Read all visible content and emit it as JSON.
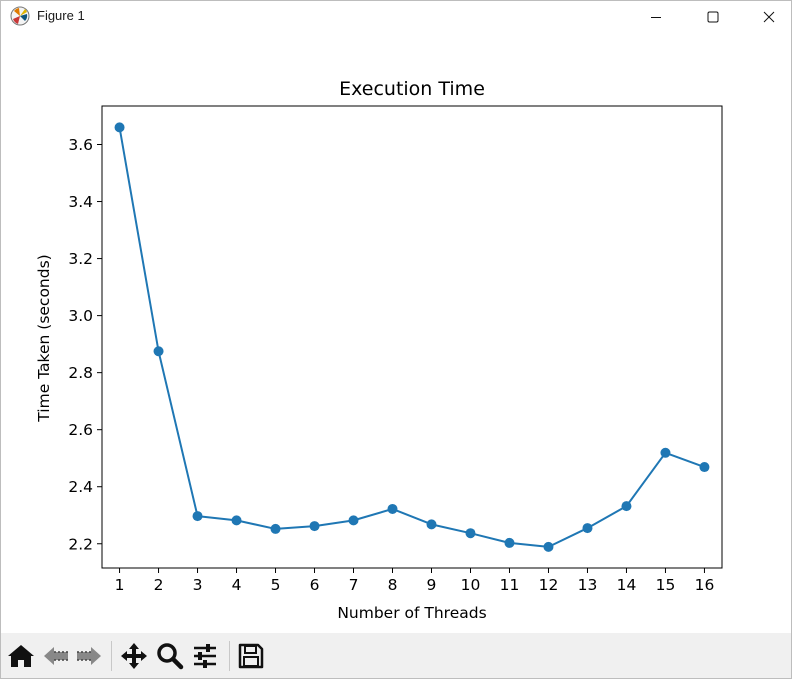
{
  "window": {
    "title": "Figure 1",
    "controls": [
      "minimize",
      "maximize",
      "close"
    ]
  },
  "toolbar": {
    "buttons": [
      {
        "name": "home",
        "icon": "home-icon"
      },
      {
        "name": "back",
        "icon": "back-arrow-icon"
      },
      {
        "name": "forward",
        "icon": "forward-arrow-icon"
      },
      {
        "name": "pan",
        "icon": "move-icon"
      },
      {
        "name": "zoom",
        "icon": "magnifier-icon"
      },
      {
        "name": "configure",
        "icon": "sliders-icon"
      },
      {
        "name": "save",
        "icon": "floppy-icon"
      }
    ]
  },
  "chart_data": {
    "type": "line",
    "title": "Execution Time",
    "xlabel": "Number of Threads",
    "ylabel": "Time Taken (seconds)",
    "x": [
      1,
      2,
      3,
      4,
      5,
      6,
      7,
      8,
      9,
      10,
      11,
      12,
      13,
      14,
      15,
      16
    ],
    "series": [
      {
        "values": [
          3.66,
          2.875,
          2.297,
          2.282,
          2.252,
          2.262,
          2.282,
          2.322,
          2.268,
          2.237,
          2.203,
          2.189,
          2.255,
          2.332,
          2.519,
          2.469
        ],
        "color": "#1f77b4",
        "marker": "circle"
      }
    ],
    "xlim": [
      0.55,
      16.45
    ],
    "ylim": [
      2.115,
      3.735
    ],
    "yticks": [
      2.2,
      2.4,
      2.6,
      2.8,
      3.0,
      3.2,
      3.4,
      3.6
    ],
    "grid": false,
    "legend": false
  }
}
